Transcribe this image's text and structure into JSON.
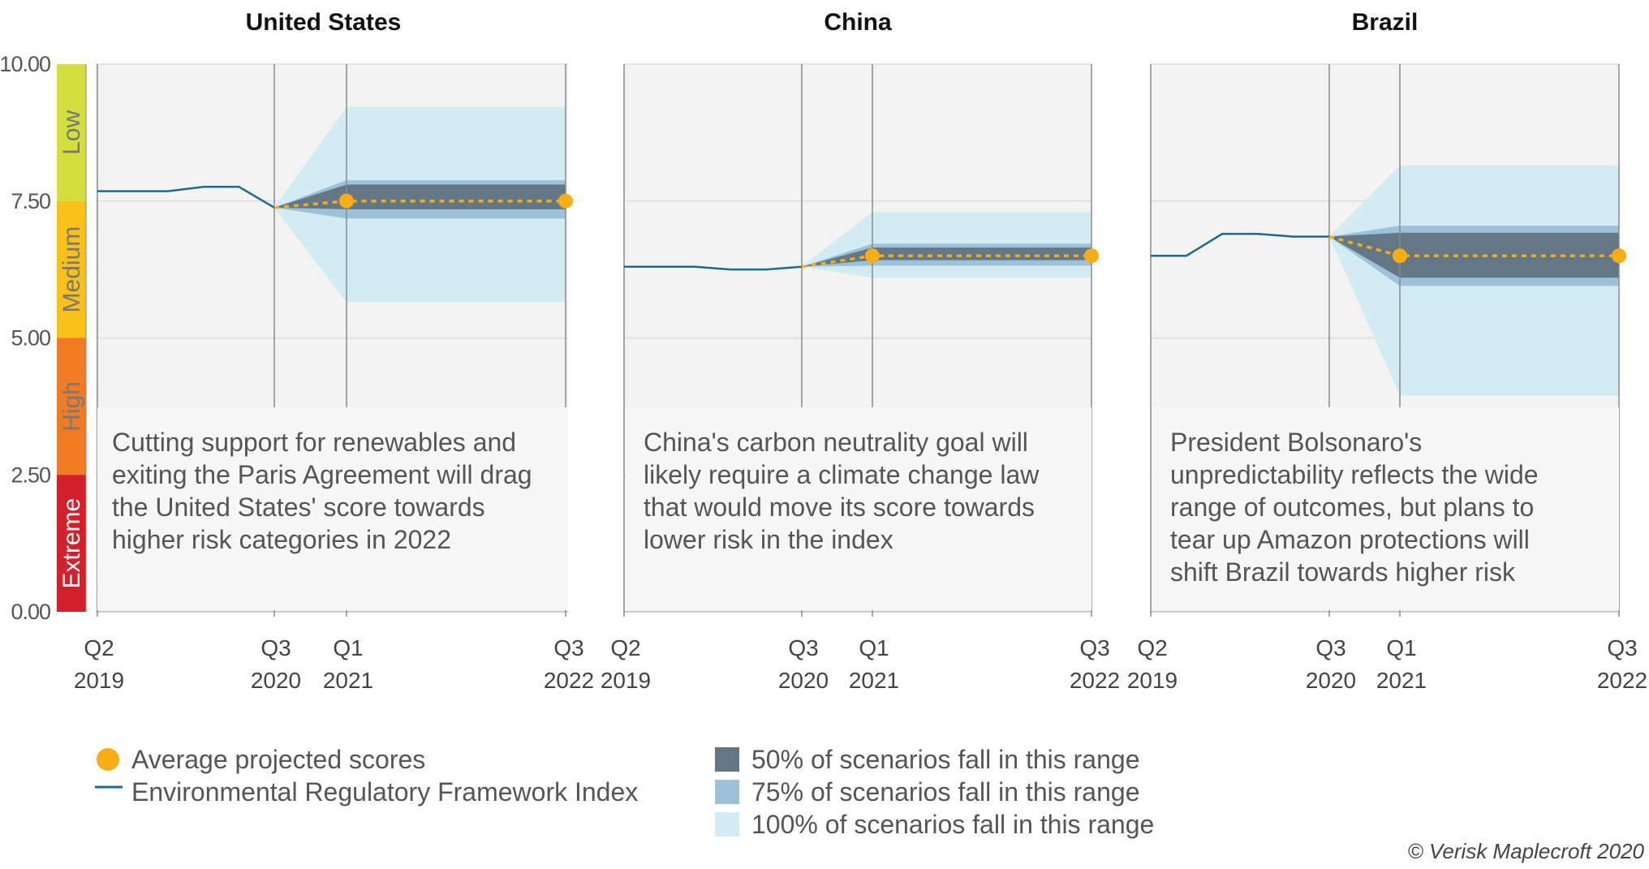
{
  "chart_data": {
    "type": "line",
    "y_axis": {
      "ylim": [
        0,
        10
      ],
      "ticks": [
        "10.00",
        "7.50",
        "5.00",
        "2.50",
        "0.00"
      ],
      "tick_values": [
        10,
        7.5,
        5,
        2.5,
        0
      ]
    },
    "x_ticks": [
      {
        "q": "Q2",
        "year": "2019"
      },
      {
        "q": "Q3",
        "year": "2020"
      },
      {
        "q": "Q1",
        "year": "2021"
      },
      {
        "q": "Q3",
        "year": "2022"
      }
    ],
    "risk_bands": [
      {
        "label": "Low",
        "from": 7.5,
        "to": 10,
        "color": "#d4df3d",
        "text_color": "#777777"
      },
      {
        "label": "Medium",
        "from": 5,
        "to": 7.5,
        "color": "#f7c11a",
        "text_color": "#777777"
      },
      {
        "label": "High",
        "from": 2.5,
        "to": 5,
        "color": "#f07b23",
        "text_color": "#777777"
      },
      {
        "label": "Extreme",
        "from": 0,
        "to": 2.5,
        "color": "#d4202a",
        "text_color": "#ffffff"
      }
    ],
    "panels": [
      {
        "title": "United States",
        "history": [
          [
            0,
            7.68
          ],
          [
            1,
            7.68
          ],
          [
            2,
            7.68
          ],
          [
            3,
            7.76
          ],
          [
            4,
            7.76
          ],
          [
            5,
            7.38
          ]
        ],
        "projection": [
          [
            5,
            7.38
          ],
          [
            6,
            7.5
          ],
          [
            10,
            7.5
          ]
        ],
        "fan_start": [
          5,
          7.38
        ],
        "fan_end_x": 10,
        "range_50": [
          7.35,
          7.8
        ],
        "range_75": [
          7.18,
          7.88
        ],
        "range_100": [
          5.65,
          9.22
        ],
        "annotation": [
          "Cutting support for renewables and",
          "exiting the Paris Agreement will drag",
          "the United States' score towards",
          "higher risk categories in 2022"
        ]
      },
      {
        "title": "China",
        "history": [
          [
            0,
            6.3
          ],
          [
            1,
            6.3
          ],
          [
            2,
            6.3
          ],
          [
            3,
            6.25
          ],
          [
            4,
            6.25
          ],
          [
            5,
            6.3
          ]
        ],
        "projection": [
          [
            5,
            6.3
          ],
          [
            6,
            6.5
          ],
          [
            10,
            6.5
          ]
        ],
        "fan_start": [
          5,
          6.3
        ],
        "fan_end_x": 10,
        "range_50": [
          6.42,
          6.65
        ],
        "range_75": [
          6.32,
          6.72
        ],
        "range_100": [
          6.1,
          7.3
        ],
        "annotation": [
          "China's carbon neutrality goal will",
          "likely require a climate change law",
          "that would move its score towards",
          "lower risk in the index"
        ]
      },
      {
        "title": "Brazil",
        "history": [
          [
            0,
            6.5
          ],
          [
            1,
            6.5
          ],
          [
            2,
            6.9
          ],
          [
            3,
            6.9
          ],
          [
            4,
            6.85
          ],
          [
            5,
            6.85
          ]
        ],
        "projection": [
          [
            5,
            6.85
          ],
          [
            6,
            6.5
          ],
          [
            10,
            6.5
          ]
        ],
        "fan_start": [
          5,
          6.85
        ],
        "fan_end_x": 10,
        "range_50": [
          6.1,
          6.92
        ],
        "range_75": [
          5.95,
          7.05
        ],
        "range_100": [
          3.95,
          8.15
        ],
        "annotation": [
          "President Bolsonaro's",
          "unpredictability reflects the wide",
          "range of outcomes, but plans to",
          "tear up Amazon protections will",
          "shift Brazil towards higher risk"
        ]
      }
    ],
    "legend": {
      "left": [
        {
          "label": "Average projected scores",
          "kind": "dot",
          "color": "#f8ad14"
        },
        {
          "label": "Environmental Regulatory Framework Index",
          "kind": "line",
          "color": "#1f6a8f"
        }
      ],
      "right": [
        {
          "label": "50% of scenarios fall in this range",
          "color": "#637785"
        },
        {
          "label": "75% of scenarios fall in this range",
          "color": "#9cc1d9"
        },
        {
          "label": "100% of scenarios fall in this range",
          "color": "#d1ecf3"
        }
      ]
    },
    "colors": {
      "history_line": "#1f6a8f",
      "projection": "#f8ad14",
      "range_50": "#637785",
      "range_75": "#9cc1d9",
      "range_100": "#d1ecf3",
      "panel_bg": "#f3f3f3",
      "gridline": "#dddddd",
      "vline": "#8a8a8a"
    },
    "credit": "© Verisk Maplecroft 2020"
  }
}
